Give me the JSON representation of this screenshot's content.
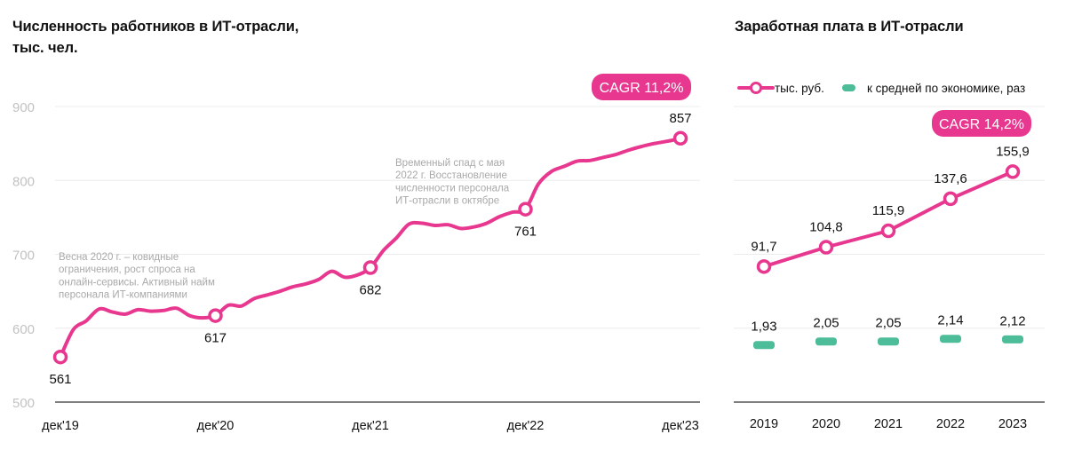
{
  "colors": {
    "accent": "#e8378f",
    "ratio": "#4dbd99",
    "grid": "#ececec",
    "axis": "#555555",
    "annotation": "#a9a9a9",
    "ytick": "#c2c2c2"
  },
  "chart_data": [
    {
      "id": "employees",
      "type": "line",
      "title": "Численность работников в ИТ-отрасли, тыс. чел.",
      "xlabel": "",
      "ylabel": "",
      "ylim": [
        500,
        900
      ],
      "yticks": [
        "900",
        "800",
        "700",
        "600",
        "500"
      ],
      "ytick_values": [
        900,
        800,
        700,
        600,
        500
      ],
      "xticks": [
        "дек'19",
        "дек'20",
        "дек'21",
        "дек'22",
        "дек'23"
      ],
      "xtick_months": [
        0,
        12,
        24,
        36,
        48
      ],
      "grid": true,
      "badge": "CAGR 11,2%",
      "series": [
        {
          "name": "Численность работников",
          "x_months_from_dec19": [
            0,
            1,
            2,
            3,
            4,
            5,
            6,
            7,
            8,
            9,
            10,
            11,
            12,
            13,
            14,
            15,
            16,
            17,
            18,
            19,
            20,
            21,
            22,
            23,
            24,
            25,
            26,
            27,
            28,
            29,
            30,
            31,
            32,
            33,
            34,
            35,
            36,
            37,
            38,
            39,
            40,
            41,
            42,
            43,
            44,
            45,
            46,
            47,
            48
          ],
          "values": [
            561,
            598,
            610,
            626,
            622,
            619,
            625,
            623,
            624,
            627,
            617,
            614,
            617,
            631,
            630,
            640,
            645,
            650,
            656,
            660,
            666,
            677,
            669,
            672,
            682,
            705,
            722,
            741,
            742,
            739,
            740,
            735,
            737,
            742,
            751,
            757,
            761,
            795,
            812,
            819,
            826,
            827,
            831,
            835,
            841,
            846,
            850,
            853,
            857
          ]
        }
      ],
      "highlighted_points": [
        {
          "month": 0,
          "label": "561",
          "value": 561
        },
        {
          "month": 12,
          "label": "617",
          "value": 617
        },
        {
          "month": 24,
          "label": "682",
          "value": 682
        },
        {
          "month": 36,
          "label": "761",
          "value": 761
        },
        {
          "month": 48,
          "label": "857",
          "value": 857
        }
      ],
      "annotations": [
        {
          "lines": [
            "Весна 2020 г. – ковидные",
            "ограничения, рост спроса на",
            "онлайн-сервисы. Активный найм",
            "персонала ИТ-компаниями"
          ]
        },
        {
          "lines": [
            "Временный спад с мая",
            "2022 г. Восстановление",
            "численности персонала",
            "ИТ-отрасли в октябре"
          ]
        }
      ]
    },
    {
      "id": "salary",
      "type": "line",
      "title": "Заработная плата в ИТ-отрасли",
      "categories": [
        "2019",
        "2020",
        "2021",
        "2022",
        "2023"
      ],
      "ylim": [
        0,
        200
      ],
      "grid": true,
      "legend_position": "top-left",
      "badge": "CAGR 14,2%",
      "series": [
        {
          "name": "тыс. руб.",
          "type": "line",
          "values": [
            91.7,
            104.8,
            115.9,
            137.6,
            155.9
          ],
          "labels": [
            "91,7",
            "104,8",
            "115,9",
            "137,6",
            "155,9"
          ]
        },
        {
          "name": "к средней по экономике, раз",
          "type": "marker",
          "values": [
            1.93,
            2.05,
            2.05,
            2.14,
            2.12
          ],
          "labels": [
            "1,93",
            "2,05",
            "2,05",
            "2,14",
            "2,12"
          ],
          "ylim": [
            0,
            10
          ]
        }
      ]
    }
  ]
}
